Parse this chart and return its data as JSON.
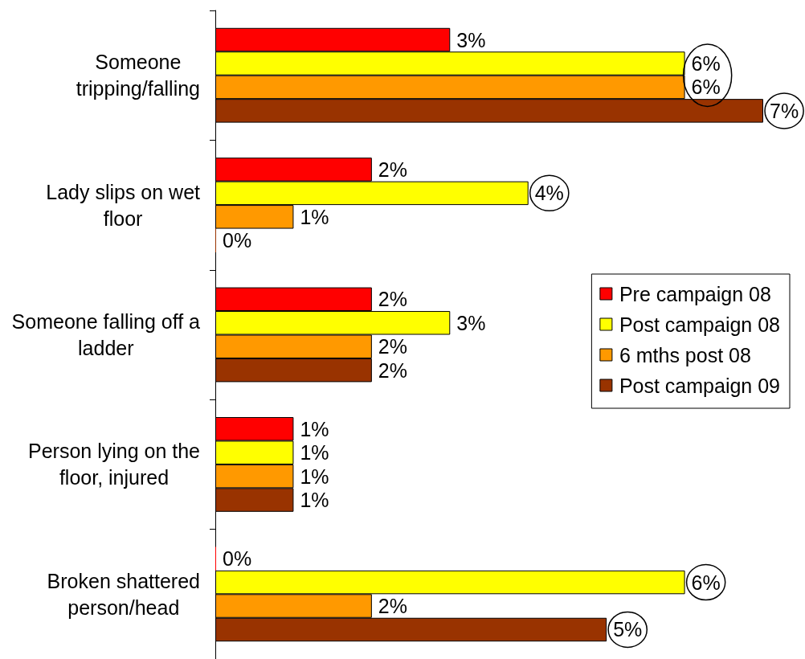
{
  "chart_data": {
    "type": "bar",
    "orientation": "horizontal",
    "tick_labels": "y",
    "legend": "right",
    "categories": [
      "Someone tripping/falling",
      "Lady slips on wet floor",
      "Someone falling off a ladder",
      "Person lying on the floor, injured",
      "Broken shattered person/head"
    ],
    "series": [
      {
        "name": "Pre campaign 08",
        "color": "#ff0000",
        "values": [
          3,
          2,
          2,
          1,
          0
        ],
        "value_labels": [
          "3%",
          "2%",
          "2%",
          "1%",
          "0%"
        ]
      },
      {
        "name": "Post campaign 08",
        "color": "#ffff00",
        "values": [
          6,
          4,
          3,
          1,
          6
        ],
        "value_labels": [
          "6%",
          "4%",
          "3%",
          "1%",
          "6%"
        ]
      },
      {
        "name": "6 mths post 08",
        "color": "#ff9900",
        "values": [
          6,
          1,
          2,
          1,
          2
        ],
        "value_labels": [
          "6%",
          "1%",
          "2%",
          "1%",
          "2%"
        ]
      },
      {
        "name": "Post campaign 09",
        "color": "#993300",
        "values": [
          7,
          0,
          2,
          1,
          5
        ],
        "value_labels": [
          "7%",
          "0%",
          "2%",
          "1%",
          "5%"
        ]
      }
    ]
  }
}
